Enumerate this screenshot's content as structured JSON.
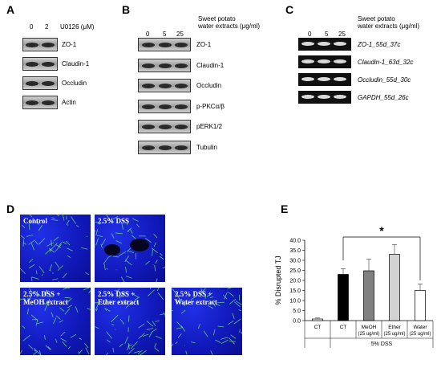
{
  "panels": {
    "A": {
      "label": "A",
      "lanes": [
        "0",
        "2"
      ],
      "treatment": "U0126 (μM)",
      "rows": [
        "ZO-1",
        "Claudin-1",
        "Occludin",
        "Actin"
      ]
    },
    "B": {
      "label": "B",
      "lanes": [
        "0",
        "5",
        "25"
      ],
      "treatment_line1": "Sweet potato",
      "treatment_line2": "water extracts (μg/ml)",
      "rows": [
        "ZO-1",
        "Claudin-1",
        "Occludin",
        "p-PKCα/β",
        "pERK1/2",
        "Tubulin"
      ]
    },
    "C": {
      "label": "C",
      "lanes": [
        "0",
        "5",
        "25"
      ],
      "treatment_line1": "Sweet potato",
      "treatment_line2": "water extracts (μg/ml)",
      "rows": [
        "ZO-1_55d_37c",
        "Claudin-1_63d_32c",
        "Occludin_55d_30c",
        "GAPDH_55d_26c"
      ]
    },
    "D": {
      "label": "D",
      "images": [
        {
          "line1": "Control",
          "line2": ""
        },
        {
          "line1": "2.5% DSS",
          "line2": ""
        },
        {
          "line1": "2.5% DSS +",
          "line2": "MeOH extract"
        },
        {
          "line1": "2.5% DSS +",
          "line2": "Ether extract"
        },
        {
          "line1": "2.5% DSS +",
          "line2": "Water extract"
        }
      ]
    },
    "E": {
      "label": "E",
      "significance": "*",
      "group_label": "5% DSS"
    }
  },
  "chart_data": {
    "type": "bar",
    "categories": [
      "CT",
      "CT",
      "MeOH (25 ug/ml)",
      "Ether (25 ug/ml)",
      "Water (25 ug/ml)"
    ],
    "category_line1": [
      "CT",
      "CT",
      "MeOH",
      "Ether",
      "Water"
    ],
    "category_line2": [
      "",
      "",
      "(25 ug/ml)",
      "(25 ug/ml)",
      "(25 ug/ml)"
    ],
    "values": [
      0.8,
      23.0,
      24.8,
      33.0,
      15.0
    ],
    "errors": [
      0.5,
      2.8,
      5.8,
      4.8,
      3.2
    ],
    "bar_colors": [
      "#ffffff",
      "#000000",
      "#808080",
      "#d3d3d3",
      "#ffffff"
    ],
    "ylabel": "% Disrupted TJ",
    "ylim": [
      0,
      40
    ],
    "yticks": [
      "0.0",
      "5.0",
      "10.0",
      "15.0",
      "20.0",
      "25.0",
      "30.0",
      "35.0",
      "40.0"
    ],
    "grid": false
  }
}
